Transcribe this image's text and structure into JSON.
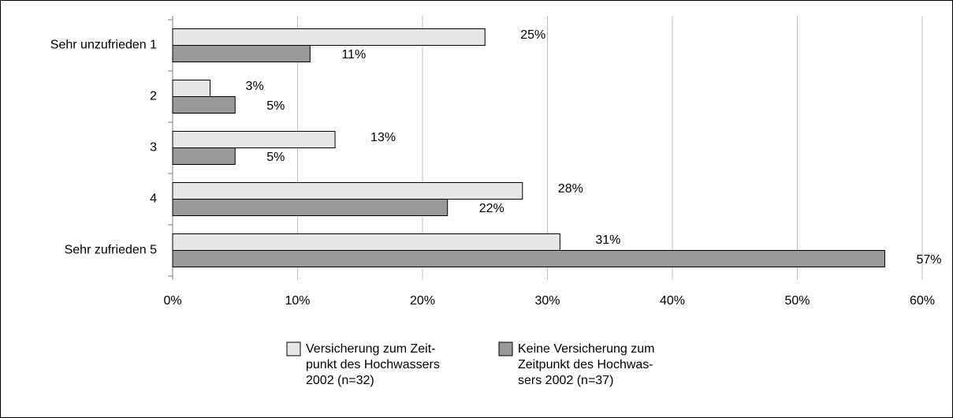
{
  "chart_data": {
    "type": "hbar",
    "categories": [
      "Sehr unzufrieden 1",
      "2",
      "3",
      "4",
      "Sehr zufrieden 5"
    ],
    "series": [
      {
        "name": "Versicherung zum Zeit-\npunkt des Hochwassers\n2002 (n=32)",
        "color": "#e6e6e6",
        "values": [
          25,
          3,
          13,
          28,
          31
        ],
        "value_labels": [
          "25%",
          "3%",
          "13%",
          "28%",
          "31%"
        ]
      },
      {
        "name": "Keine Versicherung zum\nZeitpunkt des Hochwas-\nsers 2002 (n=37)",
        "color": "#999999",
        "values": [
          11,
          5,
          5,
          22,
          57
        ],
        "value_labels": [
          "11%",
          "5%",
          "5%",
          "22%",
          "57%"
        ]
      }
    ],
    "xlim": [
      0,
      60
    ],
    "xticks": [
      {
        "value": 0,
        "label": "0%"
      },
      {
        "value": 10,
        "label": "10%"
      },
      {
        "value": 20,
        "label": "20%"
      },
      {
        "value": 30,
        "label": "30%"
      },
      {
        "value": 40,
        "label": "40%"
      },
      {
        "value": 50,
        "label": "50%"
      },
      {
        "value": 60,
        "label": "60%"
      }
    ],
    "grid": true,
    "legend": "bottom"
  }
}
